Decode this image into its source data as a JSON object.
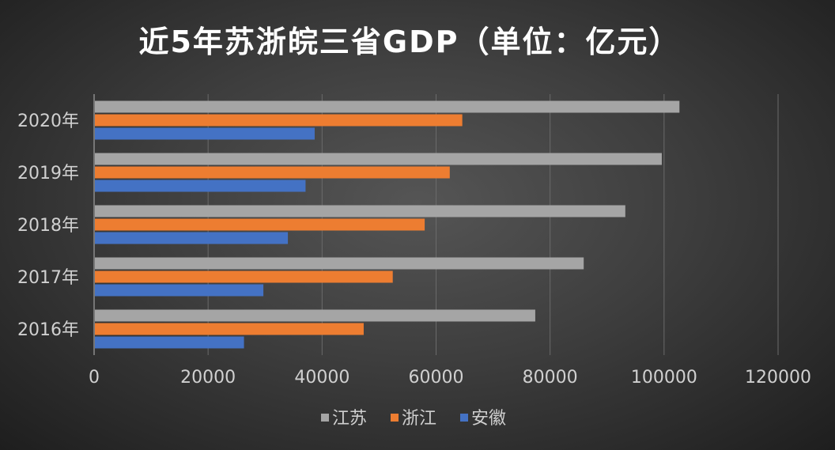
{
  "chart_data": {
    "type": "bar",
    "orientation": "horizontal",
    "title": "近5年苏浙皖三省GDP（单位：亿元）",
    "categories": [
      "2020年",
      "2019年",
      "2018年",
      "2017年",
      "2016年"
    ],
    "series": [
      {
        "name": "江苏",
        "color": "#a5a5a5",
        "values": [
          102700,
          99600,
          93200,
          85900,
          77400
        ]
      },
      {
        "name": "浙江",
        "color": "#ed7d31",
        "values": [
          64600,
          62400,
          58000,
          52400,
          47300
        ]
      },
      {
        "name": "安徽",
        "color": "#4472c4",
        "values": [
          38700,
          37100,
          34000,
          29700,
          26300
        ]
      }
    ],
    "xlim": [
      0,
      120000
    ],
    "xticks": [
      "0",
      "20000",
      "40000",
      "60000",
      "80000",
      "100000",
      "120000"
    ],
    "xlabel": "",
    "ylabel": "",
    "grid": "vertical",
    "legend": "bottom"
  }
}
